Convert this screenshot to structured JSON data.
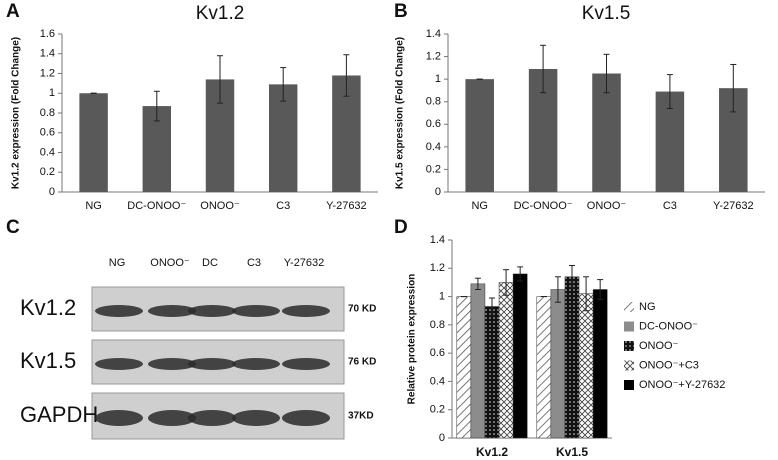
{
  "chart_data": [
    {
      "type": "bar",
      "panel_label": "A",
      "title": "Kv1.2",
      "y_label": "Kv1.2 expression (Fold Change)",
      "categories": [
        "NG",
        "DC-ONOO⁻",
        "ONOO⁻",
        "C3",
        "Y-27632"
      ],
      "values": [
        1.0,
        0.87,
        1.14,
        1.09,
        1.18
      ],
      "errors": [
        0.0,
        0.15,
        0.24,
        0.17,
        0.21
      ],
      "color": "#595959",
      "ylim": [
        0,
        1.6
      ],
      "yticks": [
        0,
        0.2,
        0.4,
        0.6,
        0.8,
        1,
        1.2,
        1.4,
        1.6
      ]
    },
    {
      "type": "bar",
      "panel_label": "B",
      "title": "Kv1.5",
      "y_label": "Kv1.5 expression (Fold Change)",
      "categories": [
        "NG",
        "DC-ONOO⁻",
        "ONOO⁻",
        "C3",
        "Y-27632"
      ],
      "values": [
        1.0,
        1.09,
        1.05,
        0.89,
        0.92
      ],
      "errors": [
        0.0,
        0.21,
        0.17,
        0.15,
        0.21
      ],
      "color": "#595959",
      "ylim": [
        0,
        1.4
      ],
      "yticks": [
        0,
        0.2,
        0.4,
        0.6,
        0.8,
        1,
        1.2,
        1.4
      ]
    },
    {
      "type": "bar",
      "panel_label": "D",
      "y_label": "Relative protein expression",
      "categories": [
        "Kv1.2",
        "Kv1.5"
      ],
      "series": [
        {
          "name": "NG",
          "color": "#ffffff",
          "pattern": "diagonal",
          "values": [
            1.0,
            1.0
          ],
          "errors": [
            0.0,
            0.0
          ]
        },
        {
          "name": "DC-ONOO⁻",
          "color": "#8c8c8c",
          "values": [
            1.09,
            1.05
          ],
          "errors": [
            0.04,
            0.09
          ]
        },
        {
          "name": "ONOO⁻",
          "color": "#111111",
          "pattern": "dots",
          "values": [
            0.93,
            1.14
          ],
          "errors": [
            0.06,
            0.08
          ]
        },
        {
          "name": "ONOO⁻+C3",
          "color": "#ffffff",
          "pattern": "cross",
          "values": [
            1.1,
            1.02
          ],
          "errors": [
            0.09,
            0.12
          ]
        },
        {
          "name": "ONOO⁻+Y-27632",
          "color": "#000000",
          "values": [
            1.16,
            1.05
          ],
          "errors": [
            0.05,
            0.07
          ]
        }
      ],
      "legend": "right",
      "ylim": [
        0,
        1.4
      ],
      "yticks": [
        0,
        0.2,
        0.4,
        0.6,
        0.8,
        1,
        1.2,
        1.4
      ]
    }
  ],
  "blot": {
    "panel_label": "C",
    "lanes": [
      "NG",
      "ONOO⁻",
      "DC",
      "C3",
      "Y-27632"
    ],
    "rows": [
      {
        "label": "Kv1.2",
        "size": "70 KD"
      },
      {
        "label": "Kv1.5",
        "size": "76 KD"
      },
      {
        "label": "GAPDH",
        "size": "37KD"
      }
    ]
  }
}
